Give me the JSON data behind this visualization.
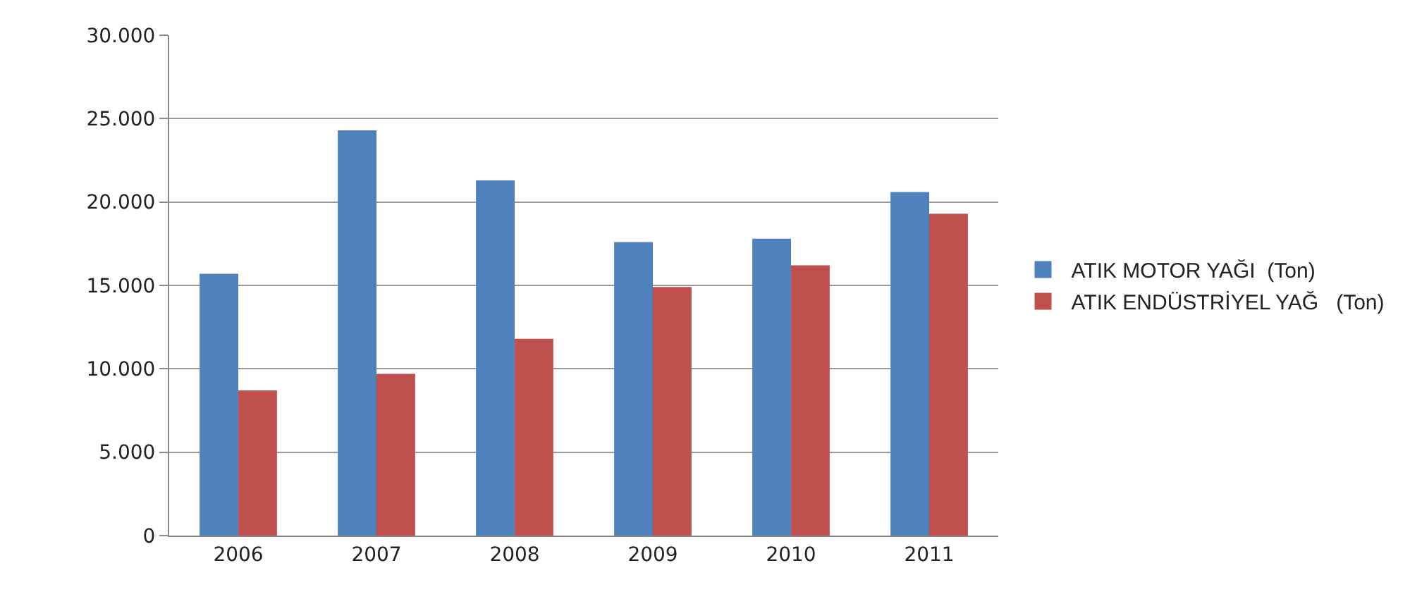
{
  "chart_data": {
    "type": "bar",
    "categories": [
      "2006",
      "2007",
      "2008",
      "2009",
      "2010",
      "2011"
    ],
    "series": [
      {
        "name": "ATIK MOTOR YAĞI  (Ton)",
        "color": "#4f81bd",
        "values": [
          15700,
          24300,
          21300,
          17600,
          17800,
          20600
        ]
      },
      {
        "name": "ATIK ENDÜSTRİYEL YAĞ   (Ton)",
        "color": "#c0504d",
        "values": [
          8700,
          9700,
          11800,
          14900,
          16200,
          19300
        ]
      }
    ],
    "ylim": [
      0,
      30000
    ],
    "yticks": [
      {
        "value": 0,
        "label": "0"
      },
      {
        "value": 5000,
        "label": "5.000"
      },
      {
        "value": 10000,
        "label": "10.000"
      },
      {
        "value": 15000,
        "label": "15.000"
      },
      {
        "value": 20000,
        "label": "20.000"
      },
      {
        "value": 25000,
        "label": "25.000"
      },
      {
        "value": 30000,
        "label": "30.000"
      }
    ],
    "grid": "y",
    "legend": "right"
  }
}
